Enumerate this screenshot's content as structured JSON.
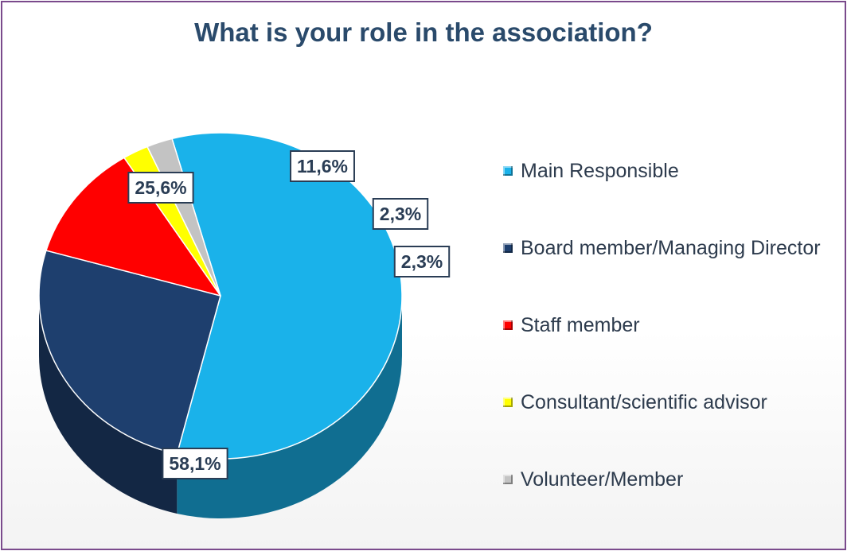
{
  "chart_data": {
    "type": "pie",
    "title": "What is your role in the association?",
    "legend_position": "right",
    "slices": [
      {
        "name": "Main Responsible",
        "value": 58.1,
        "label": "58,1%",
        "color": "#1ab2ea"
      },
      {
        "name": "Board member/Managing Director",
        "value": 25.6,
        "label": "25,6%",
        "color": "#1e3f6e"
      },
      {
        "name": "Staff member",
        "value": 11.6,
        "label": "11,6%",
        "color": "#ff0000"
      },
      {
        "name": "Consultant/scientific advisor",
        "value": 2.3,
        "label": "2,3%",
        "color": "#ffff00"
      },
      {
        "name": "Volunteer/Member",
        "value": 2.3,
        "label": "2,3%",
        "color": "#c3c3c3"
      }
    ]
  }
}
